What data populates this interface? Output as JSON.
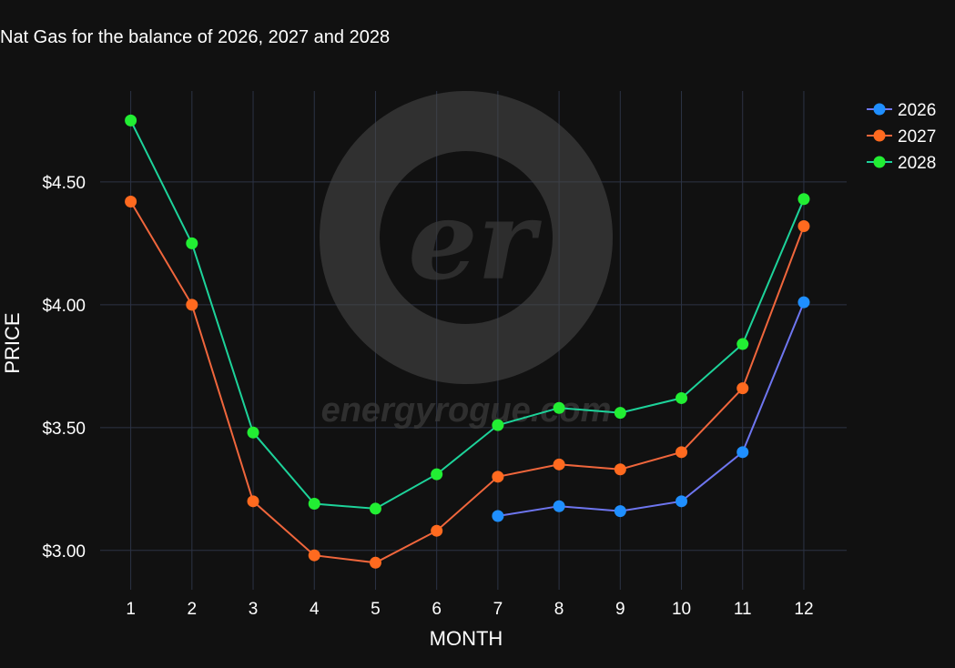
{
  "chart_data": {
    "type": "line",
    "title": "Nat Gas for the balance of 2026, 2027 and 2028",
    "xlabel": "MONTH",
    "ylabel": "PRICE",
    "x": [
      1,
      2,
      3,
      4,
      5,
      6,
      7,
      8,
      9,
      10,
      11,
      12
    ],
    "xlim": [
      0.5,
      12.7
    ],
    "ylim": [
      2.84,
      4.87
    ],
    "yticks": [
      3.0,
      3.5,
      4.0,
      4.5
    ],
    "ytick_labels": [
      "$3.00",
      "$3.50",
      "$4.00",
      "$4.50"
    ],
    "grid": true,
    "legend_position": "top-right",
    "series": [
      {
        "name": "2026",
        "marker_color": "#1f8fff",
        "line_color": "#6e76f0",
        "values": [
          null,
          null,
          null,
          null,
          null,
          null,
          3.14,
          3.18,
          3.16,
          3.2,
          3.4,
          4.01
        ]
      },
      {
        "name": "2027",
        "marker_color": "#ff6a1f",
        "line_color": "#f0663c",
        "values": [
          4.42,
          4.0,
          3.2,
          2.98,
          2.95,
          3.08,
          3.3,
          3.35,
          3.33,
          3.4,
          3.66,
          4.32
        ]
      },
      {
        "name": "2028",
        "marker_color": "#22ee33",
        "line_color": "#1dd39a",
        "values": [
          4.75,
          4.25,
          3.48,
          3.19,
          3.17,
          3.31,
          3.51,
          3.58,
          3.56,
          3.62,
          3.84,
          4.43
        ]
      }
    ]
  },
  "watermark": {
    "logo_text": "er",
    "site_text": "energyrogue.com"
  },
  "colors": {
    "background": "#111111",
    "grid": "#2c3345"
  }
}
